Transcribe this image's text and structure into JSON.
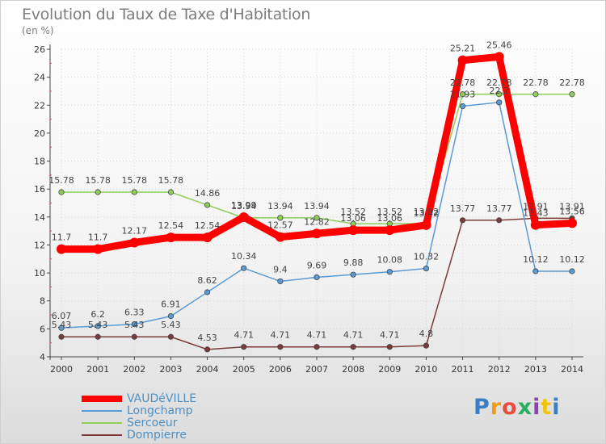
{
  "title": "Evolution du Taux de Taxe d'Habitation",
  "subtitle": "(en %)",
  "brand": "Proxiti",
  "chart_data": {
    "type": "line",
    "x": [
      2000,
      2001,
      2002,
      2003,
      2004,
      2005,
      2006,
      2007,
      2008,
      2009,
      2010,
      2011,
      2012,
      2013,
      2014
    ],
    "ylim": [
      4,
      26
    ],
    "yticks": [
      4,
      6,
      8,
      10,
      12,
      14,
      16,
      18,
      20,
      22,
      24,
      26
    ],
    "grid": true,
    "legend_position": "bottom-left",
    "series": [
      {
        "name": "VAUDéVILLE",
        "color": "#ff0000",
        "values": [
          11.7,
          11.7,
          12.17,
          12.54,
          12.54,
          13.99,
          12.57,
          12.82,
          13.06,
          13.06,
          13.42,
          25.21,
          25.46,
          13.43,
          13.56
        ]
      },
      {
        "name": "Longchamp",
        "color": "#5b9bd5",
        "values": [
          6.07,
          6.2,
          6.33,
          6.91,
          8.62,
          10.34,
          9.4,
          9.69,
          9.88,
          10.08,
          10.32,
          21.93,
          22.2,
          10.12,
          10.12
        ]
      },
      {
        "name": "Sercoeur",
        "color": "#8fce5b",
        "values": [
          15.78,
          15.78,
          15.78,
          15.78,
          14.86,
          13.94,
          13.94,
          13.94,
          13.52,
          13.52,
          13.52,
          22.78,
          22.78,
          22.78,
          22.78
        ]
      },
      {
        "name": "Dompierre",
        "color": "#7b3b3b",
        "values": [
          5.43,
          5.43,
          5.43,
          5.43,
          4.53,
          4.71,
          4.71,
          4.71,
          4.71,
          4.71,
          4.8,
          13.77,
          13.77,
          13.91,
          13.91
        ]
      }
    ],
    "data_labels": [
      [
        "11.7",
        "11.7",
        "12.17",
        "12.54",
        "12.54",
        "13.99",
        "12.57",
        "12.82",
        "13.06",
        "13.06",
        "13.42",
        "25.21",
        "25.46",
        "13.43",
        "13.56"
      ],
      [
        "6.07",
        "6.2",
        "6.33",
        "6.91",
        "8.62",
        "10.34",
        "9.4",
        "9.69",
        "9.88",
        "10.08",
        "10.32",
        "21.93",
        "22.2",
        "10.12",
        "10.12"
      ],
      [
        "15.78",
        "15.78",
        "15.78",
        "15.78",
        "14.86",
        "13.94",
        "13.94",
        "13.94",
        "13.52",
        "13.52",
        "13.52",
        "22.78",
        "22.78",
        "22.78",
        "22.78"
      ],
      [
        "5.43",
        "5.43",
        "5.43",
        "5.43",
        "4.53",
        "4.71",
        "4.71",
        "4.71",
        "4.71",
        "4.71",
        "4.8",
        "13.77",
        "13.77",
        "13.91",
        "13.91"
      ]
    ]
  }
}
